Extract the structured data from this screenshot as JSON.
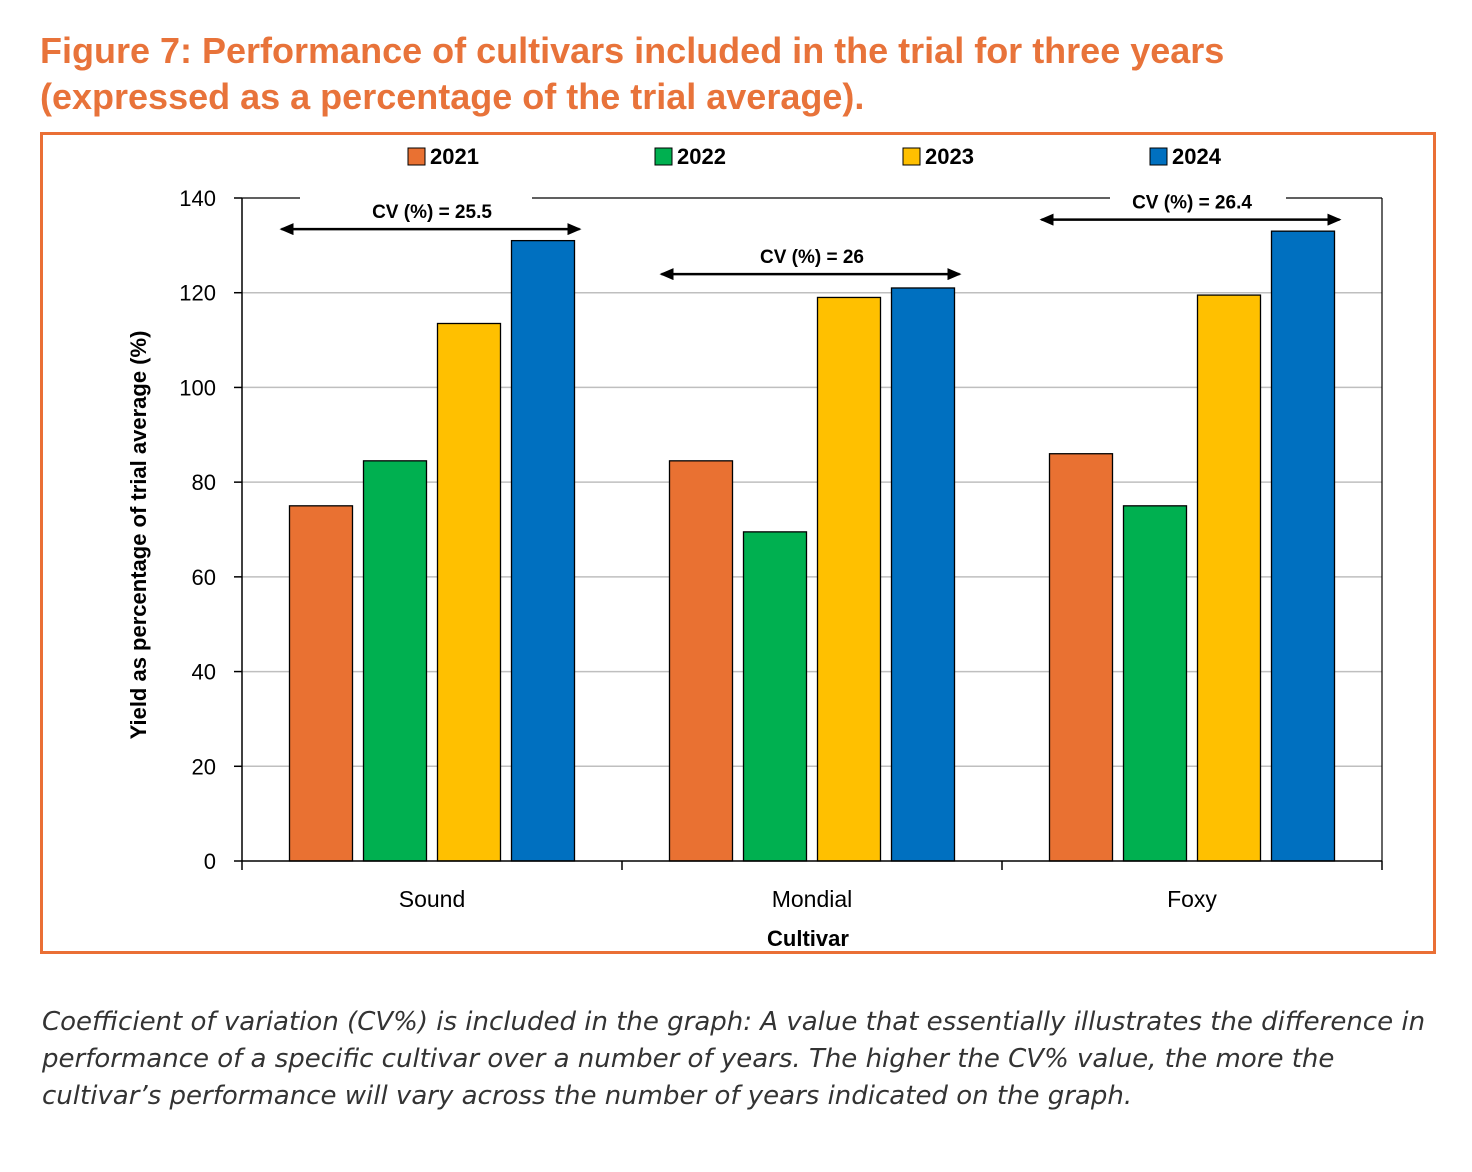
{
  "figure": {
    "title_line1": "Figure 7: Performance of cultivars included in the trial for three years",
    "title_line2": "(expressed as a percentage of the trial average).",
    "caption": "Coefficient of variation (CV%) is included in the graph: A value that essentially illustrates the difference in performance of a specific cultivar over a number of years. The higher the CV% value, the more the cultivar’s performance will vary across the number of years indicated on the graph."
  },
  "colors": {
    "title": "#e8733a",
    "frame": "#ea6f35",
    "grid": "#bfbfbf",
    "axis": "#000000"
  },
  "chart_data": {
    "type": "bar",
    "title": "Performance of cultivars included in the trial for three years (expressed as a percentage of the trial average)",
    "xlabel": "Cultivar",
    "ylabel": "Yield as percentage of trial average (%)",
    "ylim": [
      0,
      140
    ],
    "yticks": [
      0,
      20,
      40,
      60,
      80,
      100,
      120,
      140
    ],
    "grid": true,
    "legend_position": "top",
    "categories": [
      "Sound",
      "Mondial",
      "Foxy"
    ],
    "series": [
      {
        "name": "2021",
        "color": "#e97132",
        "values": [
          75,
          84.5,
          86
        ]
      },
      {
        "name": "2022",
        "color": "#00b050",
        "values": [
          84.5,
          69.5,
          75
        ]
      },
      {
        "name": "2023",
        "color": "#ffc000",
        "values": [
          113.5,
          119,
          119.5
        ]
      },
      {
        "name": "2024",
        "color": "#0070c0",
        "values": [
          131,
          121,
          133
        ]
      }
    ],
    "annotations": [
      {
        "category": "Sound",
        "text": "CV (%) = 25.5",
        "value": 133
      },
      {
        "category": "Mondial",
        "text": "CV (%) = 26",
        "value": 123.5
      },
      {
        "category": "Foxy",
        "text": "CV (%) = 26.4",
        "value": 135
      }
    ]
  }
}
